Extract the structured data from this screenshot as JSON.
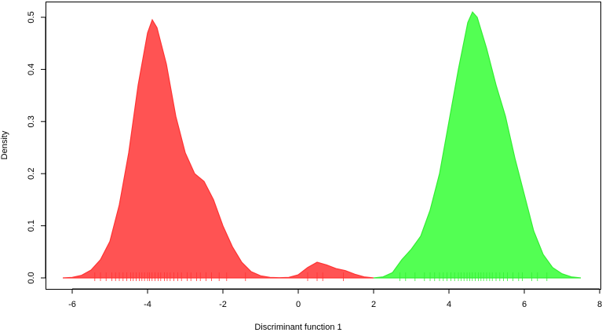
{
  "chart_data": {
    "type": "area",
    "xlabel": "Discriminant function 1",
    "ylabel": "Density",
    "x": [
      -6.25,
      -6.0,
      -5.75,
      -5.5,
      -5.25,
      -5.0,
      -4.75,
      -4.5,
      -4.25,
      -4.0,
      -3.875,
      -3.75,
      -3.5,
      -3.25,
      -3.0,
      -2.75,
      -2.5,
      -2.25,
      -2.0,
      -1.75,
      -1.5,
      -1.25,
      -1.0,
      -0.75,
      -0.5,
      -0.25,
      0.0,
      0.25,
      0.5,
      0.75,
      1.0,
      1.25,
      1.5,
      1.75,
      2.0,
      2.25,
      2.5,
      2.75,
      3.0,
      3.25,
      3.5,
      3.75,
      4.0,
      4.25,
      4.5,
      4.625,
      4.75,
      5.0,
      5.25,
      5.5,
      5.75,
      6.0,
      6.25,
      6.5,
      6.75,
      7.0,
      7.25,
      7.5
    ],
    "series": [
      {
        "color": "#ff3333",
        "fill": "#ff4a4a",
        "values": [
          0,
          0.001,
          0.005,
          0.015,
          0.035,
          0.07,
          0.14,
          0.24,
          0.37,
          0.47,
          0.495,
          0.48,
          0.41,
          0.31,
          0.24,
          0.2,
          0.185,
          0.15,
          0.1,
          0.06,
          0.03,
          0.012,
          0.004,
          0.001,
          0.0005,
          0.001,
          0.006,
          0.02,
          0.03,
          0.025,
          0.018,
          0.014,
          0.007,
          0.002,
          0,
          null,
          null,
          null,
          null,
          null,
          null,
          null,
          null,
          null,
          null,
          null,
          null,
          null,
          null,
          null,
          null,
          null,
          null,
          null,
          null,
          null,
          null,
          null
        ],
        "rug": [
          -5.4,
          -5.25,
          -5.1,
          -4.95,
          -4.85,
          -4.75,
          -4.65,
          -4.55,
          -4.45,
          -4.38,
          -4.3,
          -4.22,
          -4.15,
          -4.08,
          -4.0,
          -3.95,
          -3.88,
          -3.8,
          -3.72,
          -3.65,
          -3.55,
          -3.48,
          -3.4,
          -3.3,
          -3.2,
          -3.1,
          -2.95,
          -2.85,
          -2.7,
          -2.6,
          -2.45,
          -2.3,
          -2.1,
          -1.9,
          -1.4,
          0.25,
          0.5,
          0.65,
          1.2
        ]
      },
      {
        "color": "#33ee33",
        "fill": "#4aff4a",
        "values": [
          null,
          null,
          null,
          null,
          null,
          null,
          null,
          null,
          null,
          null,
          null,
          null,
          null,
          null,
          null,
          null,
          null,
          null,
          null,
          null,
          null,
          null,
          null,
          null,
          null,
          null,
          null,
          null,
          null,
          null,
          null,
          null,
          null,
          null,
          0,
          0.002,
          0.01,
          0.035,
          0.055,
          0.08,
          0.13,
          0.2,
          0.3,
          0.4,
          0.49,
          0.51,
          0.5,
          0.44,
          0.37,
          0.31,
          0.23,
          0.16,
          0.09,
          0.045,
          0.02,
          0.008,
          0.002,
          0
        ],
        "rug": [
          2.7,
          2.85,
          3.1,
          3.35,
          3.5,
          3.62,
          3.75,
          3.85,
          3.95,
          4.05,
          4.15,
          4.25,
          4.32,
          4.4,
          4.48,
          4.55,
          4.62,
          4.7,
          4.78,
          4.85,
          4.92,
          5.0,
          5.08,
          5.15,
          5.25,
          5.35,
          5.45,
          5.55,
          5.7,
          5.85,
          5.95,
          6.2,
          6.35,
          6.6
        ]
      }
    ],
    "xlim": [
      -6,
      8
    ],
    "xticks": [
      -6,
      -4,
      -2,
      0,
      2,
      4,
      6,
      8
    ],
    "ylim": [
      0,
      0.5
    ],
    "yticks": [
      {
        "value": 0,
        "label": "0.0"
      },
      0.1,
      0.2,
      0.3,
      0.4,
      0.5
    ]
  }
}
